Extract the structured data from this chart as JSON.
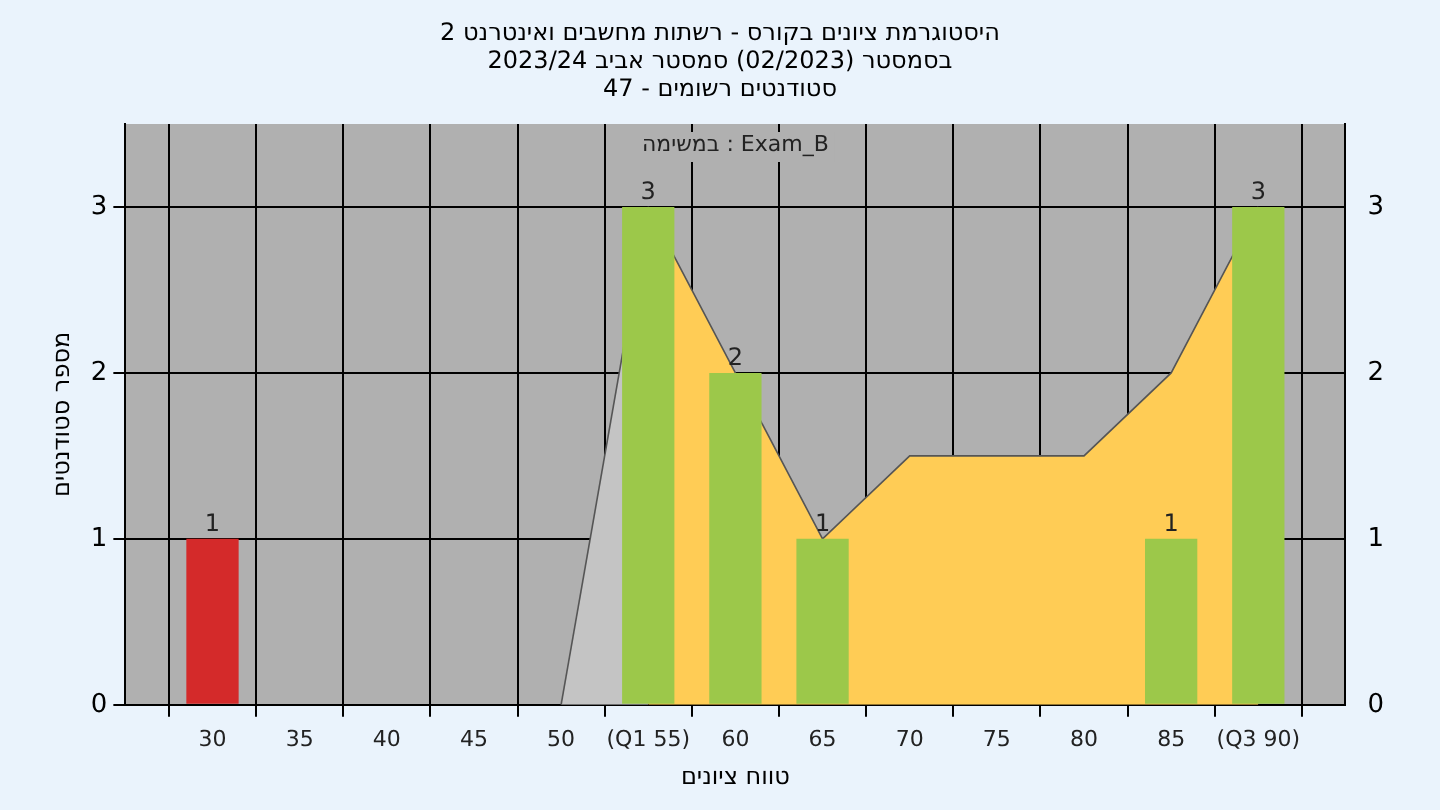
{
  "chart_data": {
    "type": "bar",
    "title": "היסטוגרמת ציונים בקורס - רשתות מחשבים ואינטרנט 2",
    "subtitle": "בסמסטר  (02/2023)  סמסטר אביב 2023/24\nסטודנטים רשומים - 47",
    "xlabel": "טווח ציונים",
    "ylabel": "מספר סטודנטים",
    "annotations": [
      "Exam_B : במשימה"
    ],
    "series": [
      {
        "x": [
          30,
          55,
          60,
          65,
          85,
          90
        ],
        "values": [
          1,
          3,
          2,
          1,
          1,
          3
        ],
        "value_labels": [
          "1",
          "3",
          "2",
          "1",
          "1",
          "3"
        ],
        "colors": [
          "#d42a2a",
          "#9cc84a",
          "#9cc84a",
          "#9cc84a",
          "#9cc84a",
          "#9cc84a"
        ]
      },
      {
        "type": "area",
        "x": [
          55,
          60,
          65,
          70,
          75,
          80,
          85,
          90
        ],
        "values": [
          3,
          2,
          1,
          1.5,
          1.5,
          1.5,
          2,
          3
        ],
        "color": "#ffcc55"
      },
      {
        "type": "area",
        "x": [
          50,
          55
        ],
        "values": [
          0,
          3
        ],
        "color": "#c4c4c4"
      }
    ],
    "xlim": [
      25,
      95
    ],
    "xticks": [
      30,
      35,
      40,
      45,
      50,
      {
        "value": 55,
        "label": "(Q1 55)"
      },
      60,
      65,
      70,
      75,
      80,
      85,
      {
        "value": 90,
        "label": "(Q3 90)"
      }
    ],
    "ylim": [
      0,
      3.5
    ],
    "yticks": [
      0,
      1,
      2,
      3
    ],
    "y2lim": [
      0,
      3.5
    ],
    "y2ticks": [
      0,
      1,
      2,
      3
    ],
    "grid": true,
    "legend": false
  }
}
